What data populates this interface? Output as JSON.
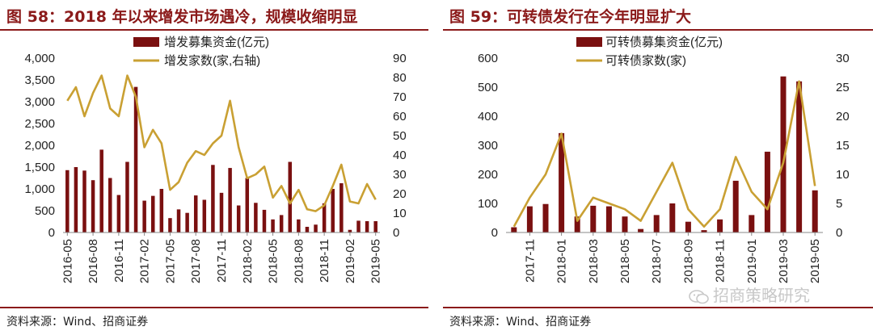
{
  "colors": {
    "bar": "#7a1010",
    "line": "#c9a033",
    "title": "#8b1a1a",
    "axis": "#888888",
    "text": "#222222"
  },
  "figures": [
    {
      "title": "图 58：2018 年以来增发市场遇冷，规模收缩明显",
      "source": "资料来源：Wind、招商证券",
      "chart_data": {
        "type": "bar",
        "legend": [
          "增发募集资金(亿元)",
          "增发家数(家,右轴)"
        ],
        "legend_placement": "top-center",
        "x_tick_labels": [
          "2016-05",
          "2016-08",
          "2016-11",
          "2017-02",
          "2017-05",
          "2017-08",
          "2017-11",
          "2018-02",
          "2018-05",
          "2018-08",
          "2018-11",
          "2019-02",
          "2019-05"
        ],
        "y_left_ticks": [
          "0",
          "500",
          "1,000",
          "1,500",
          "2,000",
          "2,500",
          "3,000",
          "3,500",
          "4,000"
        ],
        "y_right_ticks": [
          "0",
          "10",
          "20",
          "30",
          "40",
          "50",
          "60",
          "70",
          "80",
          "90"
        ],
        "ylim_left": [
          0,
          4000
        ],
        "ylim_right": [
          0,
          90
        ],
        "months": [
          "2016-05",
          "2016-06",
          "2016-07",
          "2016-08",
          "2016-09",
          "2016-10",
          "2016-11",
          "2016-12",
          "2017-01",
          "2017-02",
          "2017-03",
          "2017-04",
          "2017-05",
          "2017-06",
          "2017-07",
          "2017-08",
          "2017-09",
          "2017-10",
          "2017-11",
          "2017-12",
          "2018-01",
          "2018-02",
          "2018-03",
          "2018-04",
          "2018-05",
          "2018-06",
          "2018-07",
          "2018-08",
          "2018-09",
          "2018-10",
          "2018-11",
          "2018-12",
          "2019-01",
          "2019-02",
          "2019-03",
          "2019-04",
          "2019-05"
        ],
        "series": [
          {
            "name": "增发募集资金(亿元)",
            "kind": "bar",
            "axis": "left",
            "values": [
              1430,
              1500,
              1420,
              1200,
              1900,
              1250,
              860,
              1620,
              3340,
              730,
              840,
              1000,
              330,
              530,
              450,
              850,
              750,
              1550,
              910,
              1480,
              620,
              1250,
              680,
              520,
              300,
              400,
              1620,
              300,
              130,
              180,
              670,
              1000,
              1130,
              60,
              270,
              260,
              260
            ]
          },
          {
            "name": "增发家数(家,右轴)",
            "kind": "line",
            "axis": "right",
            "values": [
              68,
              75,
              60,
              72,
              81,
              64,
              60,
              81,
              70,
              44,
              53,
              46,
              22,
              26,
              36,
              42,
              40,
              46,
              50,
              68,
              44,
              28,
              30,
              34,
              18,
              24,
              15,
              22,
              12,
              11,
              14,
              24,
              35,
              16,
              15,
              25,
              17
            ]
          }
        ]
      }
    },
    {
      "title": "图 59：可转债发行在今年明显扩大",
      "source": "资料来源：Wind、招商证券",
      "chart_data": {
        "type": "bar",
        "legend": [
          "可转债募集资金(亿元)",
          "可转债家数(家)"
        ],
        "legend_placement": "top-center",
        "x_tick_labels": [
          "2017-11",
          "2018-01",
          "2018-03",
          "2018-05",
          "2018-07",
          "2018-09",
          "2018-11",
          "2019-01",
          "2019-03",
          "2019-05"
        ],
        "y_left_ticks": [
          "0",
          "100",
          "200",
          "300",
          "400",
          "500",
          "600"
        ],
        "y_right_ticks": [
          "0",
          "5",
          "10",
          "15",
          "20",
          "25",
          "30"
        ],
        "ylim_left": [
          0,
          600
        ],
        "ylim_right": [
          0,
          30
        ],
        "months": [
          "2017-10",
          "2017-11",
          "2017-12",
          "2018-01",
          "2018-02",
          "2018-03",
          "2018-04",
          "2018-05",
          "2018-06",
          "2018-07",
          "2018-08",
          "2018-09",
          "2018-10",
          "2018-11",
          "2018-12",
          "2019-01",
          "2019-02",
          "2019-03",
          "2019-04",
          "2019-05"
        ],
        "series": [
          {
            "name": "可转债募集资金(亿元)",
            "kind": "bar",
            "axis": "left",
            "values": [
              18,
              90,
              98,
              342,
              55,
              92,
              90,
              55,
              12,
              60,
              100,
              37,
              8,
              45,
              178,
              60,
              278,
              537,
              520,
              145
            ]
          },
          {
            "name": "可转债家数(家)",
            "kind": "line",
            "axis": "right",
            "values": [
              1,
              6,
              10,
              17,
              2,
              6,
              5,
              4,
              2,
              7,
              12,
              4,
              1,
              4,
              13,
              7,
              4,
              12,
              26,
              8
            ]
          }
        ]
      }
    }
  ],
  "watermark": "招商策略研究"
}
